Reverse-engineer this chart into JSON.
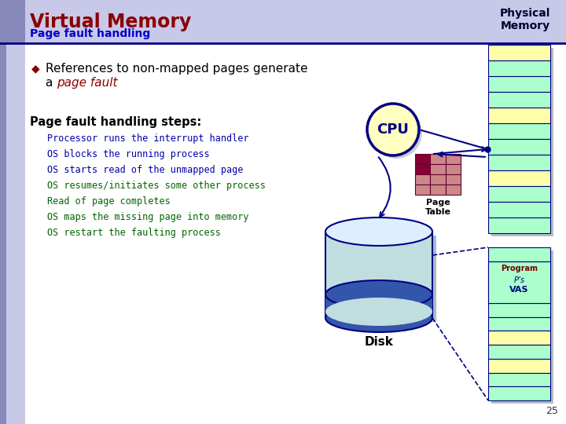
{
  "title": "Virtual Memory",
  "subtitle": "Page fault handling",
  "phys_mem_label": "Physical\nMemory",
  "bg_color": "#ffffff",
  "title_color": "#8B0000",
  "subtitle_color": "#0000CD",
  "bullet_text1": "References to non-mapped pages generate",
  "bullet_text2": "a ",
  "bullet_italic": "page fault",
  "section_header": "Page fault handling steps:",
  "steps": [
    "Processor runs the interrupt handler",
    "OS blocks the running process",
    "OS starts read of the unmapped page",
    "OS resumes/initiates some other process",
    "Read of page completes",
    "OS maps the missing page into memory",
    "OS restart the faulting process"
  ],
  "step_colors": [
    "#0000aa",
    "#0000aa",
    "#0000aa",
    "#006600",
    "#006600",
    "#006600",
    "#006600"
  ],
  "cpu_label": "CPU",
  "page_table_label": "Page\nTable",
  "disk_label": "Disk",
  "program_label": "Program",
  "vas_label": "VAS",
  "ps_label": "P’s",
  "page_num": "25",
  "header_stripe_color": "#c8c8e8",
  "left_stripe_color": "#c8c8e8",
  "left_accent_color": "#8888bb",
  "header_line_color": "#000080",
  "mem_border_color": "#000080",
  "mem_green_color": "#aaffcc",
  "mem_yellow_color": "#ffffaa",
  "mem_prog_bg": "#aaffcc",
  "page_table_border": "#660033",
  "page_table_fill": "#cc6677",
  "page_table_dark": "#880033",
  "cpu_fill": "#ffffc0",
  "cpu_border": "#000080",
  "disk_body": "#c0dde0",
  "disk_top": "#ddeeff",
  "disk_stripe": "#3355aa",
  "arrow_color": "#000080",
  "dot_color": "#000080"
}
